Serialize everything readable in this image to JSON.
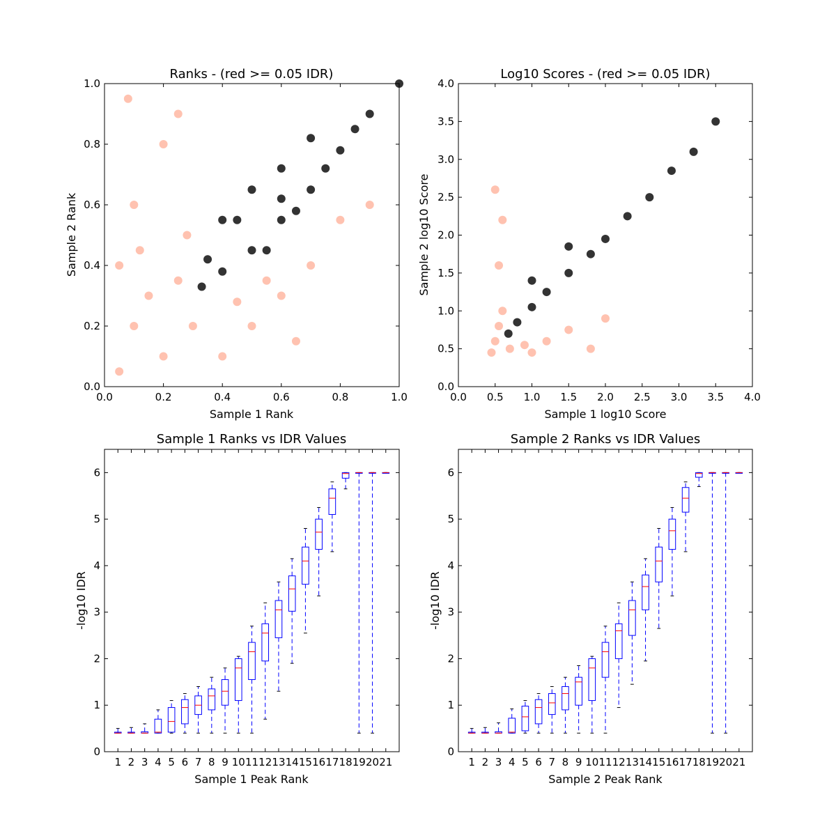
{
  "chart_data": [
    {
      "type": "scatter",
      "title": "Ranks - (red >= 0.05 IDR)",
      "xlabel": "Sample 1 Rank",
      "ylabel": "Sample 2 Rank",
      "xlim": [
        0.0,
        1.0
      ],
      "ylim": [
        0.0,
        1.0
      ],
      "xticks": [
        "0.0",
        "0.2",
        "0.4",
        "0.6",
        "0.8",
        "1.0"
      ],
      "yticks": [
        "0.0",
        "0.2",
        "0.4",
        "0.6",
        "0.8",
        "1.0"
      ],
      "grid": false,
      "colors": {
        "pass": "#000000",
        "fail": "#ff9070"
      },
      "series": [
        {
          "points": [
            [
              0.33,
              0.33
            ],
            [
              0.4,
              0.38
            ],
            [
              0.5,
              0.45
            ],
            [
              0.6,
              0.55
            ],
            [
              0.7,
              0.65
            ],
            [
              0.8,
              0.78
            ],
            [
              0.9,
              0.9
            ],
            [
              1.0,
              1.0
            ],
            [
              0.4,
              0.55
            ],
            [
              0.5,
              0.65
            ],
            [
              0.6,
              0.72
            ],
            [
              0.7,
              0.82
            ],
            [
              0.35,
              0.42
            ],
            [
              0.45,
              0.55
            ],
            [
              0.6,
              0.62
            ],
            [
              0.75,
              0.72
            ],
            [
              0.85,
              0.85
            ],
            [
              0.55,
              0.45
            ],
            [
              0.65,
              0.58
            ]
          ]
        },
        {
          "points": [
            [
              0.05,
              0.05
            ],
            [
              0.1,
              0.2
            ],
            [
              0.15,
              0.3
            ],
            [
              0.2,
              0.1
            ],
            [
              0.25,
              0.35
            ],
            [
              0.05,
              0.4
            ],
            [
              0.3,
              0.2
            ],
            [
              0.1,
              0.6
            ],
            [
              0.2,
              0.8
            ],
            [
              0.4,
              0.1
            ],
            [
              0.5,
              0.2
            ],
            [
              0.6,
              0.3
            ],
            [
              0.7,
              0.4
            ],
            [
              0.8,
              0.55
            ],
            [
              0.12,
              0.45
            ],
            [
              0.28,
              0.5
            ],
            [
              0.45,
              0.28
            ],
            [
              0.55,
              0.35
            ],
            [
              0.08,
              0.95
            ],
            [
              0.25,
              0.9
            ],
            [
              0.65,
              0.15
            ],
            [
              0.9,
              0.6
            ]
          ]
        }
      ]
    },
    {
      "type": "scatter",
      "title": "Log10 Scores - (red >= 0.05 IDR)",
      "xlabel": "Sample 1 log10 Score",
      "ylabel": "Sample 2 log10 Score",
      "xlim": [
        0.0,
        4.0
      ],
      "ylim": [
        0.0,
        4.0
      ],
      "xticks": [
        "0.0",
        "0.5",
        "1.0",
        "1.5",
        "2.0",
        "2.5",
        "3.0",
        "3.5",
        "4.0"
      ],
      "yticks": [
        "0.0",
        "0.5",
        "1.0",
        "1.5",
        "2.0",
        "2.5",
        "3.0",
        "3.5",
        "4.0"
      ],
      "grid": false,
      "colors": {
        "pass": "#000000",
        "fail": "#ff9070"
      },
      "series": [
        {
          "points": [
            [
              0.68,
              0.7
            ],
            [
              0.8,
              0.85
            ],
            [
              1.0,
              1.05
            ],
            [
              1.2,
              1.25
            ],
            [
              1.5,
              1.5
            ],
            [
              1.8,
              1.75
            ],
            [
              2.0,
              1.95
            ],
            [
              2.3,
              2.25
            ],
            [
              2.6,
              2.5
            ],
            [
              2.9,
              2.85
            ],
            [
              3.2,
              3.1
            ],
            [
              3.5,
              3.5
            ],
            [
              1.0,
              1.4
            ],
            [
              1.5,
              1.85
            ]
          ]
        },
        {
          "points": [
            [
              0.45,
              0.45
            ],
            [
              0.5,
              0.6
            ],
            [
              0.55,
              0.8
            ],
            [
              0.6,
              1.0
            ],
            [
              0.7,
              0.5
            ],
            [
              0.9,
              0.55
            ],
            [
              1.2,
              0.6
            ],
            [
              1.5,
              0.75
            ],
            [
              2.0,
              0.9
            ],
            [
              0.55,
              1.6
            ],
            [
              0.6,
              2.2
            ],
            [
              0.5,
              2.6
            ],
            [
              1.0,
              0.45
            ],
            [
              1.8,
              0.5
            ]
          ]
        }
      ]
    },
    {
      "type": "box",
      "title": "Sample 1 Ranks vs IDR Values",
      "xlabel": "Sample 1 Peak Rank",
      "ylabel": "-log10 IDR",
      "ylim": [
        0,
        6.5
      ],
      "categories": [
        "1",
        "2",
        "3",
        "4",
        "5",
        "6",
        "7",
        "8",
        "9",
        "10",
        "11",
        "12",
        "13",
        "14",
        "15",
        "16",
        "17",
        "18",
        "19",
        "20",
        "21"
      ],
      "yticks": [
        "0",
        "1",
        "2",
        "3",
        "4",
        "5",
        "6"
      ],
      "boxes": [
        {
          "min": 0.4,
          "q1": 0.4,
          "median": 0.4,
          "q3": 0.42,
          "max": 0.5
        },
        {
          "min": 0.4,
          "q1": 0.4,
          "median": 0.4,
          "q3": 0.42,
          "max": 0.52
        },
        {
          "min": 0.4,
          "q1": 0.4,
          "median": 0.4,
          "q3": 0.43,
          "max": 0.6
        },
        {
          "min": 0.4,
          "q1": 0.4,
          "median": 0.42,
          "q3": 0.7,
          "max": 0.9
        },
        {
          "min": 0.4,
          "q1": 0.42,
          "median": 0.65,
          "q3": 0.95,
          "max": 1.1
        },
        {
          "min": 0.4,
          "q1": 0.6,
          "median": 0.95,
          "q3": 1.12,
          "max": 1.25
        },
        {
          "min": 0.4,
          "q1": 0.8,
          "median": 1.0,
          "q3": 1.2,
          "max": 1.4
        },
        {
          "min": 0.4,
          "q1": 0.9,
          "median": 1.2,
          "q3": 1.35,
          "max": 1.6
        },
        {
          "min": 0.4,
          "q1": 1.0,
          "median": 1.3,
          "q3": 1.55,
          "max": 1.8
        },
        {
          "min": 0.4,
          "q1": 1.1,
          "median": 1.8,
          "q3": 2.0,
          "max": 2.05
        },
        {
          "min": 0.4,
          "q1": 1.55,
          "median": 2.15,
          "q3": 2.35,
          "max": 2.7
        },
        {
          "min": 0.7,
          "q1": 1.95,
          "median": 2.55,
          "q3": 2.75,
          "max": 3.2
        },
        {
          "min": 1.3,
          "q1": 2.45,
          "median": 3.05,
          "q3": 3.25,
          "max": 3.65
        },
        {
          "min": 1.9,
          "q1": 3.02,
          "median": 3.5,
          "q3": 3.78,
          "max": 4.15
        },
        {
          "min": 2.55,
          "q1": 3.6,
          "median": 4.1,
          "q3": 4.4,
          "max": 4.8
        },
        {
          "min": 3.35,
          "q1": 4.35,
          "median": 4.72,
          "q3": 5.0,
          "max": 5.25
        },
        {
          "min": 4.3,
          "q1": 5.1,
          "median": 5.45,
          "q3": 5.65,
          "max": 5.8
        },
        {
          "min": 5.65,
          "q1": 5.88,
          "median": 5.98,
          "q3": 6.0,
          "max": 6.0
        },
        {
          "min": 0.4,
          "q1": 6.0,
          "median": 6.0,
          "q3": 6.0,
          "max": 6.0
        },
        {
          "min": 0.4,
          "q1": 6.0,
          "median": 6.0,
          "q3": 6.0,
          "max": 6.0
        },
        {
          "min": 6.0,
          "q1": 6.0,
          "median": 6.0,
          "q3": 6.0,
          "max": 6.0
        }
      ]
    },
    {
      "type": "box",
      "title": "Sample 2 Ranks vs IDR Values",
      "xlabel": "Sample 2 Peak Rank",
      "ylabel": "-log10 IDR",
      "ylim": [
        0,
        6.5
      ],
      "categories": [
        "1",
        "2",
        "3",
        "4",
        "5",
        "6",
        "7",
        "8",
        "9",
        "10",
        "11",
        "12",
        "13",
        "14",
        "15",
        "16",
        "17",
        "18",
        "19",
        "20",
        "21"
      ],
      "yticks": [
        "0",
        "1",
        "2",
        "3",
        "4",
        "5",
        "6"
      ],
      "boxes": [
        {
          "min": 0.4,
          "q1": 0.4,
          "median": 0.4,
          "q3": 0.42,
          "max": 0.5
        },
        {
          "min": 0.4,
          "q1": 0.4,
          "median": 0.4,
          "q3": 0.42,
          "max": 0.52
        },
        {
          "min": 0.4,
          "q1": 0.4,
          "median": 0.4,
          "q3": 0.43,
          "max": 0.62
        },
        {
          "min": 0.4,
          "q1": 0.4,
          "median": 0.42,
          "q3": 0.72,
          "max": 0.92
        },
        {
          "min": 0.4,
          "q1": 0.45,
          "median": 0.75,
          "q3": 0.98,
          "max": 1.1
        },
        {
          "min": 0.4,
          "q1": 0.6,
          "median": 0.95,
          "q3": 1.12,
          "max": 1.25
        },
        {
          "min": 0.4,
          "q1": 0.8,
          "median": 1.05,
          "q3": 1.25,
          "max": 1.4
        },
        {
          "min": 0.4,
          "q1": 0.9,
          "median": 1.25,
          "q3": 1.4,
          "max": 1.6
        },
        {
          "min": 0.4,
          "q1": 1.0,
          "median": 1.5,
          "q3": 1.6,
          "max": 1.85
        },
        {
          "min": 0.4,
          "q1": 1.1,
          "median": 1.8,
          "q3": 2.0,
          "max": 2.05
        },
        {
          "min": 0.4,
          "q1": 1.6,
          "median": 2.15,
          "q3": 2.35,
          "max": 2.7
        },
        {
          "min": 0.95,
          "q1": 2.0,
          "median": 2.6,
          "q3": 2.75,
          "max": 3.2
        },
        {
          "min": 1.45,
          "q1": 2.5,
          "median": 3.05,
          "q3": 3.25,
          "max": 3.65
        },
        {
          "min": 1.95,
          "q1": 3.05,
          "median": 3.55,
          "q3": 3.8,
          "max": 4.15
        },
        {
          "min": 2.65,
          "q1": 3.65,
          "median": 4.1,
          "q3": 4.4,
          "max": 4.8
        },
        {
          "min": 3.35,
          "q1": 4.35,
          "median": 4.75,
          "q3": 5.0,
          "max": 5.25
        },
        {
          "min": 4.3,
          "q1": 5.15,
          "median": 5.45,
          "q3": 5.68,
          "max": 5.8
        },
        {
          "min": 5.7,
          "q1": 5.9,
          "median": 5.98,
          "q3": 6.0,
          "max": 6.0
        },
        {
          "min": 0.4,
          "q1": 6.0,
          "median": 6.0,
          "q3": 6.0,
          "max": 6.0
        },
        {
          "min": 0.4,
          "q1": 6.0,
          "median": 6.0,
          "q3": 6.0,
          "max": 6.0
        },
        {
          "min": 6.0,
          "q1": 6.0,
          "median": 6.0,
          "q3": 6.0,
          "max": 6.0
        }
      ]
    }
  ]
}
